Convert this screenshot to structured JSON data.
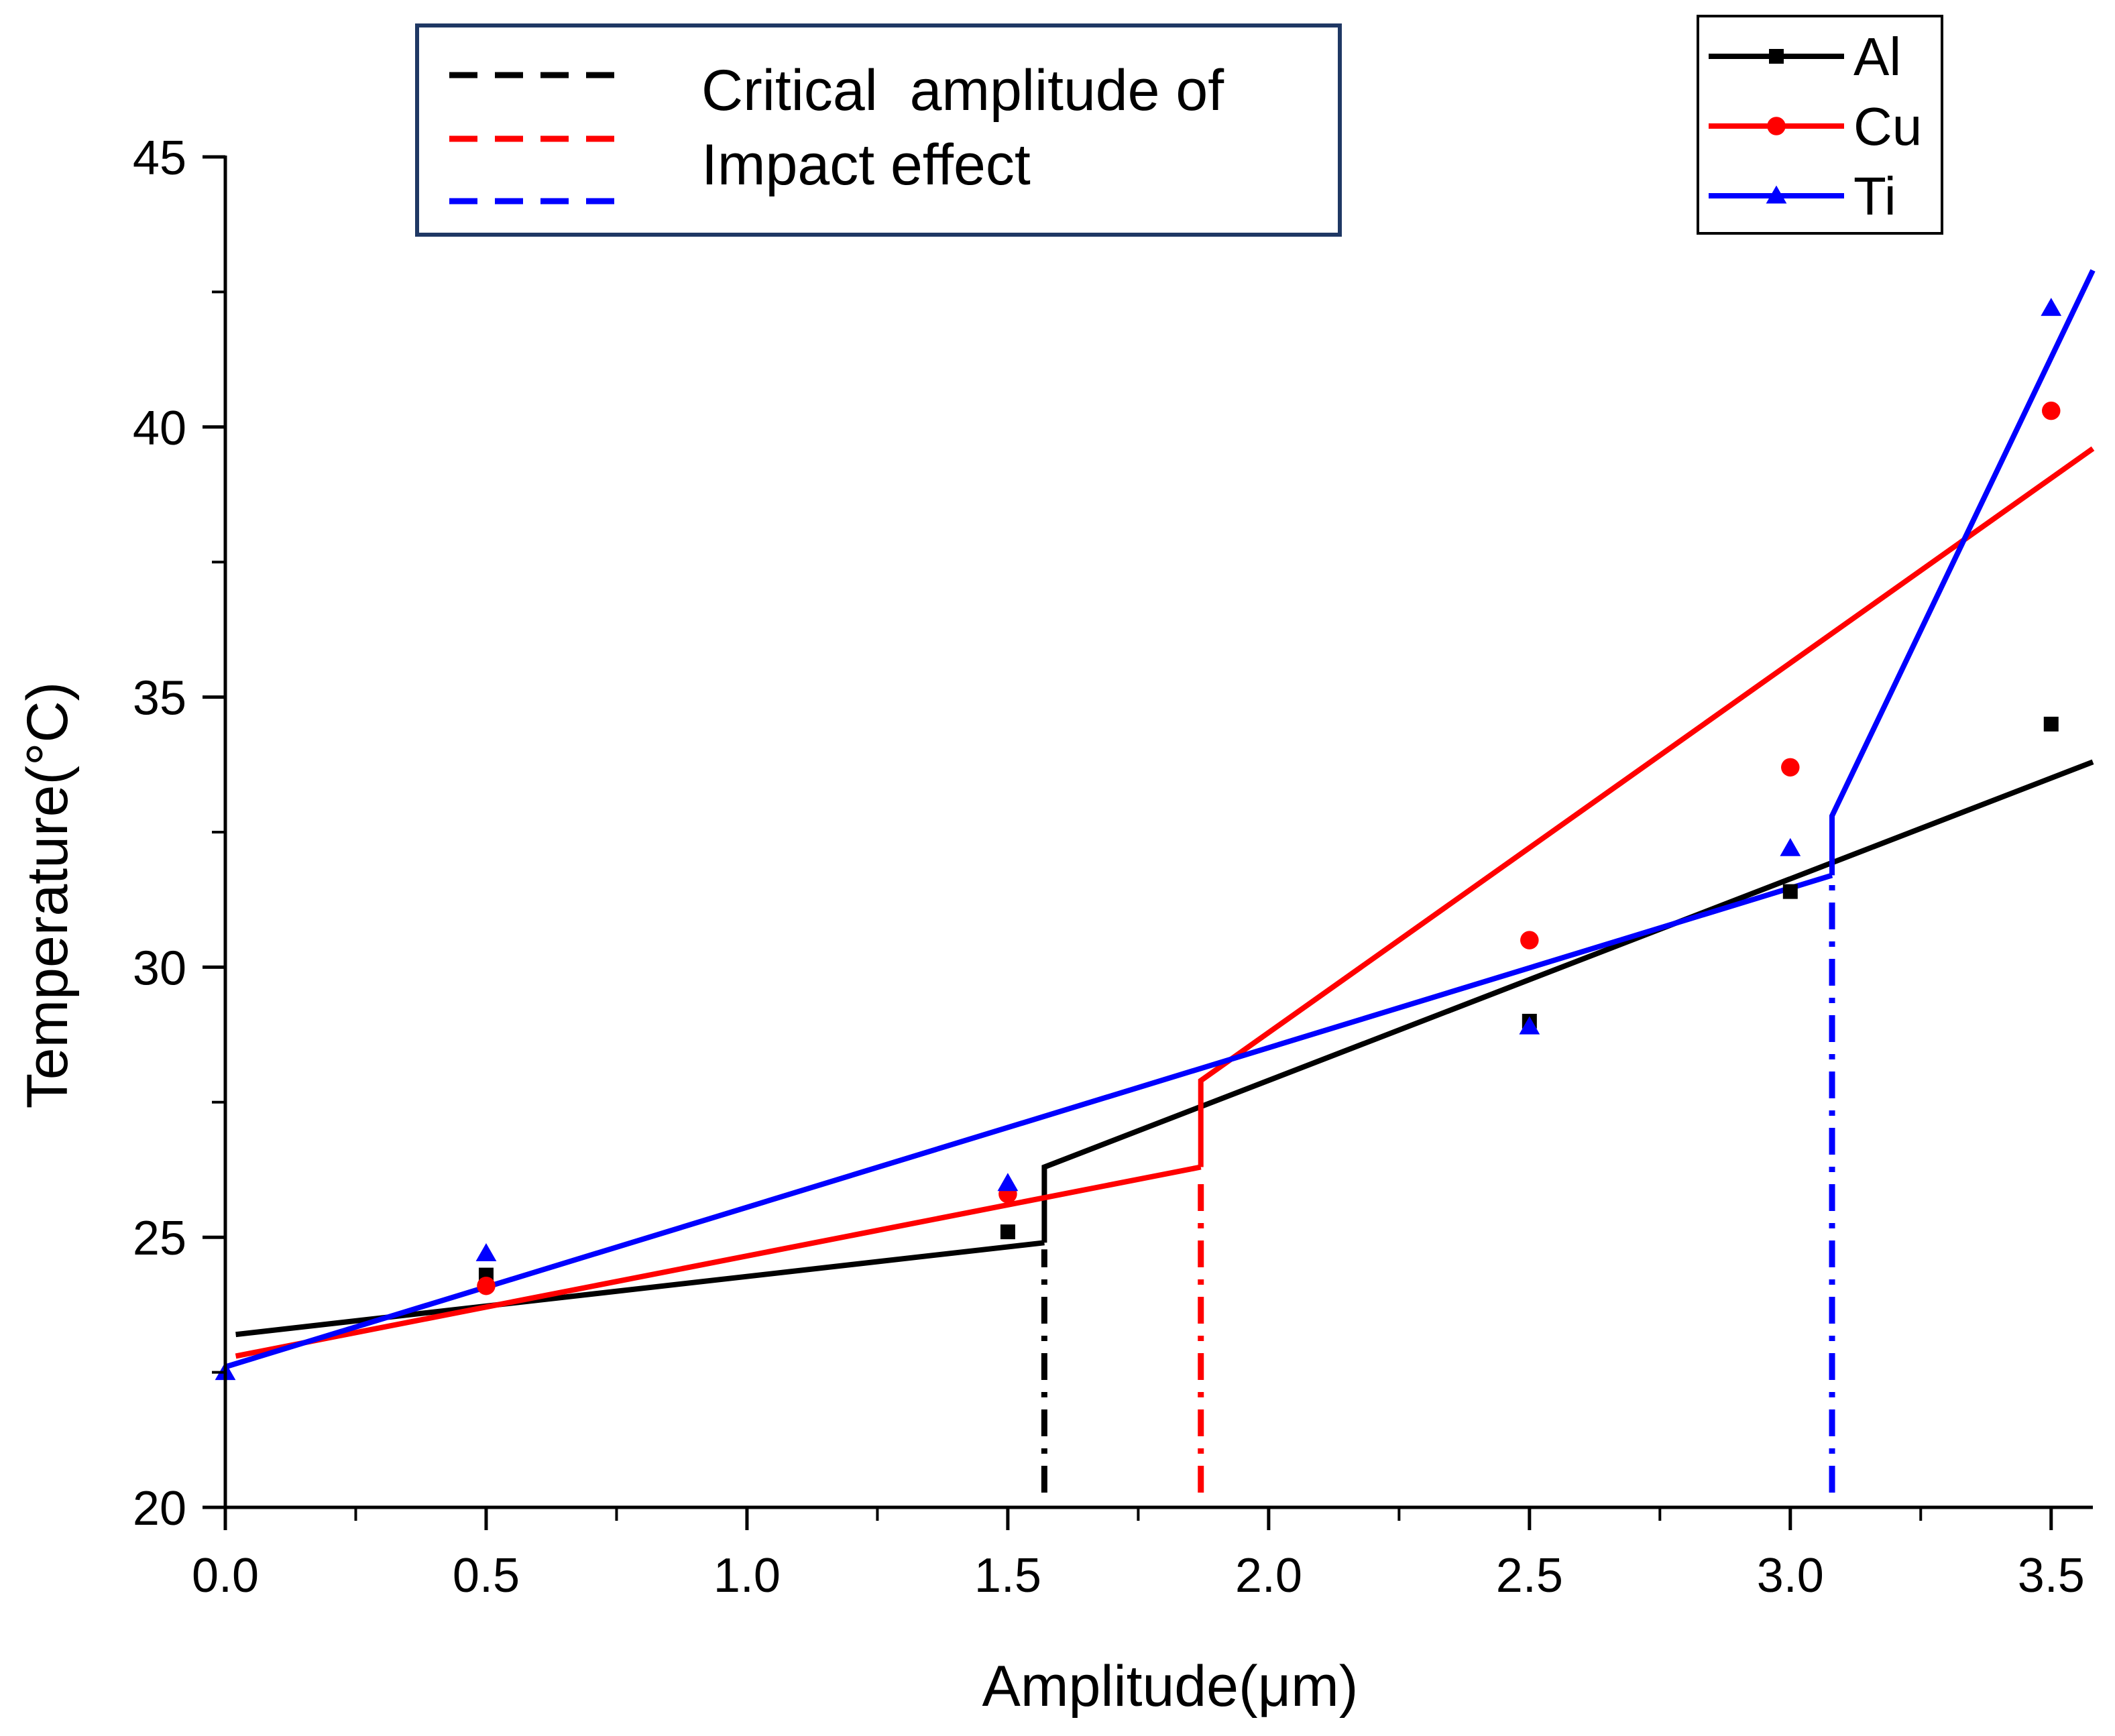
{
  "chart_data": {
    "type": "scatter",
    "xlabel": "Amplitude(μm)",
    "ylabel": "Temperature(°C)",
    "xlim": [
      0.0,
      3.58
    ],
    "ylim": [
      20,
      45
    ],
    "x_ticks": [
      "0.0",
      "0.5",
      "1.0",
      "1.5",
      "2.0",
      "2.5",
      "3.0",
      "3.5"
    ],
    "y_ticks": [
      "20",
      "25",
      "30",
      "35",
      "40",
      "45"
    ],
    "x_tick_values": [
      0.0,
      0.5,
      1.0,
      1.5,
      2.0,
      2.5,
      3.0,
      3.5
    ],
    "y_tick_values": [
      20,
      25,
      30,
      35,
      40,
      45
    ],
    "legend_placement": "top-right",
    "series": [
      {
        "name": "Al",
        "color": "#000000",
        "marker": "square",
        "points": [
          [
            0.5,
            24.3
          ],
          [
            1.5,
            25.1
          ],
          [
            2.5,
            29.0
          ],
          [
            3.0,
            31.4
          ],
          [
            3.5,
            34.5
          ]
        ],
        "fit_segments": [
          [
            [
              0.02,
              23.2
            ],
            [
              1.57,
              24.9
            ]
          ],
          [
            [
              1.57,
              24.9
            ],
            [
              1.57,
              26.3
            ],
            [
              3.58,
              33.8
            ]
          ]
        ],
        "critical_amplitude": 1.57
      },
      {
        "name": "Cu",
        "color": "#ff0000",
        "marker": "circle",
        "points": [
          [
            0.5,
            24.1
          ],
          [
            1.5,
            25.8
          ],
          [
            2.5,
            30.5
          ],
          [
            3.0,
            33.7
          ],
          [
            3.5,
            40.3
          ]
        ],
        "fit_segments": [
          [
            [
              0.02,
              22.8
            ],
            [
              1.87,
              26.3
            ]
          ],
          [
            [
              1.87,
              26.3
            ],
            [
              1.87,
              27.9
            ],
            [
              3.58,
              39.6
            ]
          ]
        ],
        "critical_amplitude": 1.87
      },
      {
        "name": "Ti",
        "color": "#0000ff",
        "marker": "triangle",
        "points": [
          [
            0.0,
            22.5
          ],
          [
            0.5,
            24.7
          ],
          [
            1.5,
            26.0
          ],
          [
            2.5,
            28.9
          ],
          [
            3.0,
            32.2
          ],
          [
            3.5,
            42.2
          ]
        ],
        "fit_segments": [
          [
            [
              0.0,
              22.6
            ],
            [
              3.08,
              31.7
            ]
          ],
          [
            [
              3.08,
              31.7
            ],
            [
              3.08,
              32.8
            ],
            [
              3.58,
              42.9
            ]
          ]
        ],
        "critical_amplitude": 3.08
      }
    ],
    "critical_legend": {
      "line1": "Critical  amplitude of",
      "line2": "Impact effect",
      "colors": [
        "#000000",
        "#ff0000",
        "#0000ff"
      ]
    }
  }
}
